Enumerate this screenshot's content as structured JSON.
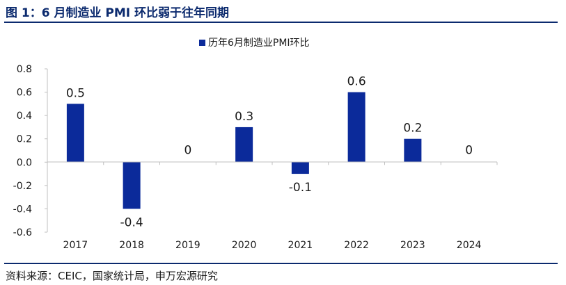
{
  "figure": {
    "title": "图 1：6 月制造业 PMI 环比弱于往年同期",
    "source": "资料来源：CEIC，国家统计局，申万宏源研究"
  },
  "colors": {
    "bar": "#0b2a9a",
    "accent": "#0b2a6e",
    "axis": "#bfbfbf"
  },
  "chart_data": {
    "type": "bar",
    "title": "",
    "xlabel": "",
    "ylabel": "",
    "categories": [
      "2017",
      "2018",
      "2019",
      "2020",
      "2021",
      "2022",
      "2023",
      "2024"
    ],
    "series": [
      {
        "name": "历年6月制造业PMI环比",
        "values": [
          0.5,
          -0.4,
          0,
          0.3,
          -0.1,
          0.6,
          0.2,
          0
        ]
      }
    ],
    "data_labels": [
      "0.5",
      "-0.4",
      "0",
      "0.3",
      "-0.1",
      "0.6",
      "0.2",
      "0"
    ],
    "ylim": [
      -0.6,
      0.8
    ],
    "yticks": [
      0.8,
      0.6,
      0.4,
      0.2,
      0.0,
      -0.2,
      -0.4,
      -0.6
    ],
    "ytick_labels": [
      "0.8",
      "0.6",
      "0.4",
      "0.2",
      "0.0",
      "-0.2",
      "-0.4",
      "-0.6"
    ],
    "grid": false,
    "legend_position": "top-center"
  }
}
